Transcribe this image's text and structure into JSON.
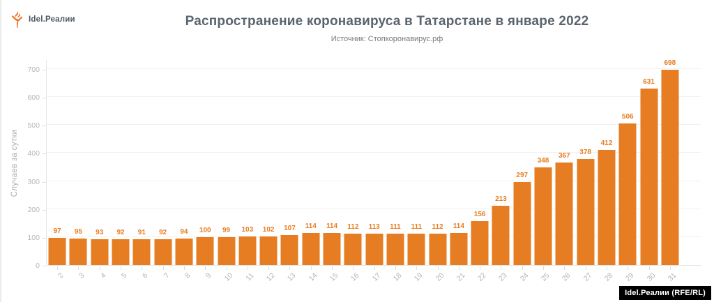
{
  "logo": {
    "text": "Idel.Реалии",
    "icon": "rferl-torch-icon",
    "icon_color": "#ee6d1f"
  },
  "watermark": {
    "text": "Idel.Реалии (RFE/RL)"
  },
  "chart_data": {
    "type": "bar",
    "title": "Распространение коронавируса в Татарстане в январе 2022",
    "subtitle": "Источник: Стопкоронавирус.рф",
    "xlabel": "",
    "ylabel": "Случаев за сутки",
    "categories": [
      "2",
      "3",
      "4",
      "5",
      "6",
      "7",
      "8",
      "9",
      "10",
      "11",
      "12",
      "13",
      "14",
      "15",
      "16",
      "17",
      "18",
      "19",
      "20",
      "21",
      "22",
      "23",
      "24",
      "25",
      "26",
      "27",
      "28",
      "29",
      "30",
      "31"
    ],
    "values": [
      97,
      95,
      93,
      92,
      91,
      92,
      94,
      100,
      99,
      103,
      102,
      107,
      114,
      114,
      112,
      113,
      111,
      111,
      112,
      114,
      156,
      213,
      297,
      348,
      367,
      378,
      412,
      506,
      631,
      698
    ],
    "yticks": [
      0,
      100,
      200,
      300,
      400,
      500,
      600,
      700
    ],
    "ylim": [
      0,
      735
    ],
    "grid": "horizontal",
    "legend": "none",
    "bar_color": "#e67d22",
    "value_label_color": "#e67d22",
    "title_color": "#5a646e",
    "axis_label_color": "#b2b6ba"
  }
}
